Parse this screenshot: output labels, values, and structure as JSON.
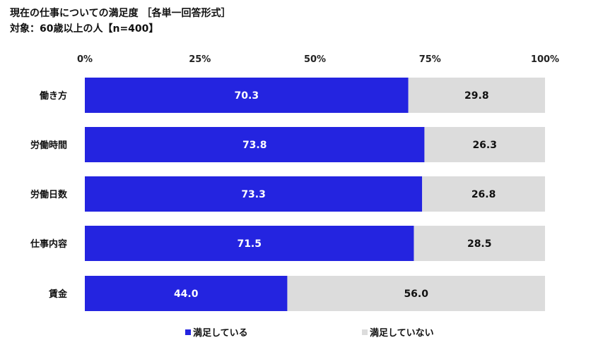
{
  "title": "現在の仕事についての満足度 ［各単一回答形式］",
  "subtitle": "対象：60歳以上の人【n=400】",
  "chart_data": {
    "type": "bar",
    "orientation": "horizontal",
    "stacked": "100%",
    "categories": [
      "働き方",
      "労働時間",
      "労働日数",
      "仕事内容",
      "賃金"
    ],
    "series": [
      {
        "name": "満足している",
        "values": [
          70.3,
          73.8,
          73.3,
          71.5,
          44.0
        ],
        "color": "#2424e0"
      },
      {
        "name": "満足していない",
        "values": [
          29.8,
          26.3,
          26.8,
          28.5,
          56.0
        ],
        "color": "#dcdcdc"
      }
    ],
    "xticks": [
      "0%",
      "25%",
      "50%",
      "75%",
      "100%"
    ],
    "xlim": [
      0,
      100
    ],
    "legend": "bottom",
    "grid": false
  }
}
